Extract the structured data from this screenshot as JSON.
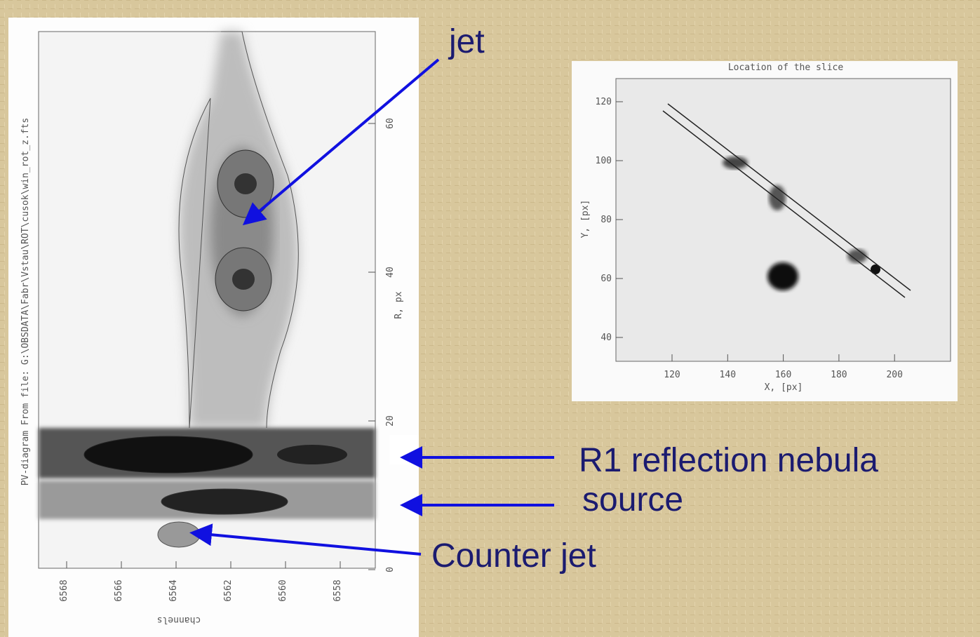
{
  "annotations": {
    "jet": "jet",
    "r1": "R1 reflection nebula",
    "source": "source",
    "counter_jet": "Counter jet"
  },
  "pv_diagram": {
    "side_title": "PV-diagram From file: G:\\OBSDATA\\Fabr\\Vstau\\ROT\\cusok\\win_rot_z.fts",
    "x_label": "channels",
    "x_ticks": [
      "6568",
      "6566",
      "6564",
      "6562",
      "6560",
      "6558"
    ],
    "y_label": "R, px",
    "y_ticks": [
      "0",
      "20",
      "40",
      "60"
    ]
  },
  "slice_plot": {
    "title": "Location of the slice",
    "x_label": "X, [px]",
    "x_ticks": [
      "120",
      "140",
      "160",
      "180",
      "200"
    ],
    "y_label": "Y, [px]",
    "y_ticks": [
      "40",
      "60",
      "80",
      "100",
      "120"
    ]
  }
}
